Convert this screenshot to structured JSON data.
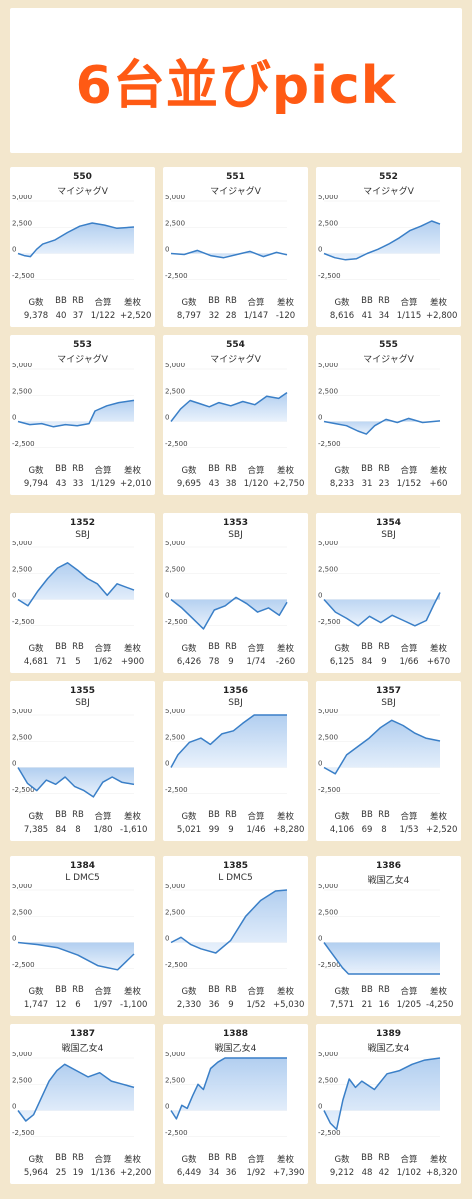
{
  "title": "6台並びpick",
  "stat_headers": [
    "G数",
    "BB",
    "RB",
    "合算",
    "差枚"
  ],
  "axis": {
    "ymin": -3000,
    "ymax": 5000,
    "ticks": [
      "5,000",
      "2,500",
      "0",
      "-2,500"
    ]
  },
  "colors": {
    "line": "#3a7fc7",
    "fill_top": "#a9c9ee",
    "fill_bottom": "#e8f1fc",
    "accent": "#ff5a14"
  },
  "chart_data": [
    {
      "type": "area",
      "machine": "550",
      "model": "マイジャグV",
      "games": "9,378",
      "bb": "40",
      "rb": "37",
      "combined": "1/122",
      "diff": "+2,520",
      "x": [
        0,
        500,
        1000,
        1500,
        2000,
        3000,
        4000,
        5000,
        6000,
        7000,
        8000,
        9378
      ],
      "y": [
        0,
        -200,
        -300,
        400,
        900,
        1300,
        2000,
        2600,
        2900,
        2700,
        2400,
        2520
      ]
    },
    {
      "type": "area",
      "machine": "551",
      "model": "マイジャグV",
      "games": "8,797",
      "bb": "32",
      "rb": "28",
      "combined": "1/147",
      "diff": "-120",
      "x": [
        0,
        1000,
        2000,
        3000,
        4000,
        5000,
        6000,
        7000,
        8000,
        8797
      ],
      "y": [
        0,
        -100,
        300,
        -200,
        -400,
        -100,
        200,
        -300,
        100,
        -120
      ]
    },
    {
      "type": "area",
      "machine": "552",
      "model": "マイジャグV",
      "games": "8,616",
      "bb": "41",
      "rb": "34",
      "combined": "1/115",
      "diff": "+2,800",
      "x": [
        0,
        800,
        1600,
        2400,
        3200,
        4000,
        4800,
        5600,
        6400,
        7200,
        8000,
        8616
      ],
      "y": [
        0,
        -400,
        -600,
        -500,
        0,
        400,
        900,
        1500,
        2200,
        2600,
        3100,
        2800
      ]
    },
    {
      "type": "area",
      "machine": "553",
      "model": "マイジャグV",
      "games": "9,794",
      "bb": "43",
      "rb": "33",
      "combined": "1/129",
      "diff": "+2,010",
      "x": [
        0,
        1000,
        2000,
        3000,
        4000,
        5000,
        6000,
        6500,
        7500,
        8500,
        9794
      ],
      "y": [
        0,
        -300,
        -200,
        -500,
        -300,
        -400,
        -200,
        1000,
        1500,
        1800,
        2010
      ]
    },
    {
      "type": "area",
      "machine": "554",
      "model": "マイジャグV",
      "games": "9,695",
      "bb": "43",
      "rb": "38",
      "combined": "1/120",
      "diff": "+2,750",
      "x": [
        0,
        800,
        1600,
        2400,
        3200,
        4000,
        5000,
        6000,
        7000,
        8000,
        9000,
        9695
      ],
      "y": [
        0,
        1200,
        2000,
        1700,
        1400,
        1800,
        1500,
        1900,
        1600,
        2400,
        2200,
        2750
      ]
    },
    {
      "type": "area",
      "machine": "555",
      "model": "マイジャグV",
      "games": "8,233",
      "bb": "31",
      "rb": "23",
      "combined": "1/152",
      "diff": "+60",
      "x": [
        0,
        800,
        1600,
        2400,
        3000,
        3600,
        4400,
        5200,
        6000,
        7000,
        8233
      ],
      "y": [
        0,
        -200,
        -400,
        -900,
        -1200,
        -400,
        200,
        -100,
        300,
        -100,
        60
      ]
    },
    {
      "type": "area",
      "machine": "1352",
      "model": "SBJ",
      "games": "4,681",
      "bb": "71",
      "rb": "5",
      "combined": "1/62",
      "diff": "+900",
      "x": [
        0,
        400,
        800,
        1200,
        1600,
        2000,
        2400,
        2800,
        3200,
        3600,
        4000,
        4681
      ],
      "y": [
        0,
        -600,
        800,
        2000,
        3000,
        3500,
        2800,
        2000,
        1500,
        400,
        1500,
        900
      ]
    },
    {
      "type": "area",
      "machine": "1353",
      "model": "SBJ",
      "games": "6,426",
      "bb": "78",
      "rb": "9",
      "combined": "1/74",
      "diff": "-260",
      "x": [
        0,
        600,
        1200,
        1800,
        2400,
        3000,
        3600,
        4200,
        4800,
        5400,
        6000,
        6426
      ],
      "y": [
        0,
        -800,
        -1800,
        -2800,
        -1000,
        -600,
        200,
        -400,
        -1200,
        -800,
        -1500,
        -260
      ]
    },
    {
      "type": "area",
      "machine": "1354",
      "model": "SBJ",
      "games": "6,125",
      "bb": "84",
      "rb": "9",
      "combined": "1/66",
      "diff": "+670",
      "x": [
        0,
        600,
        1200,
        1800,
        2400,
        3000,
        3600,
        4200,
        4800,
        5400,
        5800,
        6125
      ],
      "y": [
        0,
        -1200,
        -1800,
        -2500,
        -1600,
        -2200,
        -1500,
        -2000,
        -2500,
        -2000,
        -500,
        670
      ]
    },
    {
      "type": "area",
      "machine": "1355",
      "model": "SBJ",
      "games": "7,385",
      "bb": "84",
      "rb": "8",
      "combined": "1/80",
      "diff": "-1,610",
      "x": [
        0,
        600,
        1200,
        1800,
        2400,
        3000,
        3600,
        4200,
        4800,
        5400,
        6000,
        6600,
        7385
      ],
      "y": [
        0,
        -1500,
        -2200,
        -1200,
        -1600,
        -900,
        -1800,
        -2200,
        -2800,
        -1400,
        -900,
        -1400,
        -1610
      ]
    },
    {
      "type": "area",
      "machine": "1356",
      "model": "SBJ",
      "games": "5,021",
      "bb": "99",
      "rb": "9",
      "combined": "1/46",
      "diff": "+8,280",
      "x": [
        0,
        300,
        800,
        1300,
        1700,
        2200,
        2700,
        3100,
        3600,
        4200,
        5021
      ],
      "y": [
        0,
        1200,
        2400,
        2800,
        2200,
        3200,
        3500,
        4200,
        5000,
        5000,
        5000
      ]
    },
    {
      "type": "area",
      "machine": "1357",
      "model": "SBJ",
      "games": "4,106",
      "bb": "69",
      "rb": "8",
      "combined": "1/53",
      "diff": "+2,520",
      "x": [
        0,
        400,
        800,
        1200,
        1600,
        2000,
        2400,
        2800,
        3200,
        3600,
        4106
      ],
      "y": [
        0,
        -600,
        1200,
        2000,
        2800,
        3800,
        4500,
        4000,
        3300,
        2800,
        2520
      ]
    },
    {
      "type": "area",
      "machine": "1384",
      "model": "L DMC5",
      "games": "1,747",
      "bb": "12",
      "rb": "6",
      "combined": "1/97",
      "diff": "-1,100",
      "x": [
        0,
        300,
        600,
        900,
        1200,
        1500,
        1747
      ],
      "y": [
        0,
        -200,
        -500,
        -1200,
        -2200,
        -2600,
        -1100
      ]
    },
    {
      "type": "area",
      "machine": "1385",
      "model": "L DMC5",
      "games": "2,330",
      "bb": "36",
      "rb": "9",
      "combined": "1/52",
      "diff": "+5,030",
      "x": [
        0,
        200,
        400,
        600,
        900,
        1200,
        1500,
        1800,
        2100,
        2330
      ],
      "y": [
        0,
        500,
        -200,
        -600,
        -1000,
        200,
        2500,
        4000,
        4900,
        5030
      ]
    },
    {
      "type": "area",
      "machine": "1386",
      "model": "戦国乙女4",
      "games": "7,571",
      "bb": "21",
      "rb": "16",
      "combined": "1/205",
      "diff": "-4,250",
      "x": [
        0,
        400,
        800,
        1200,
        1600,
        2000,
        7571
      ],
      "y": [
        0,
        -800,
        -1600,
        -2400,
        -3000,
        -3000,
        -3000
      ]
    },
    {
      "type": "area",
      "machine": "1387",
      "model": "戦国乙女4",
      "games": "5,964",
      "bb": "25",
      "rb": "19",
      "combined": "1/136",
      "diff": "+2,200",
      "x": [
        0,
        400,
        800,
        1200,
        1600,
        2000,
        2400,
        3000,
        3600,
        4200,
        4800,
        5400,
        5964
      ],
      "y": [
        0,
        -1000,
        -400,
        1200,
        2800,
        3800,
        4400,
        3800,
        3200,
        3600,
        2800,
        2500,
        2200
      ]
    },
    {
      "type": "area",
      "machine": "1388",
      "model": "戦国乙女4",
      "games": "6,449",
      "bb": "34",
      "rb": "36",
      "combined": "1/92",
      "diff": "+7,390",
      "x": [
        0,
        300,
        600,
        900,
        1200,
        1500,
        1800,
        2200,
        2600,
        3000,
        6449
      ],
      "y": [
        0,
        -800,
        500,
        200,
        1400,
        2500,
        2000,
        4000,
        4600,
        5000,
        5000
      ]
    },
    {
      "type": "area",
      "machine": "1389",
      "model": "戦国乙女4",
      "games": "9,212",
      "bb": "48",
      "rb": "42",
      "combined": "1/102",
      "diff": "+8,320",
      "x": [
        0,
        500,
        1000,
        1500,
        2000,
        2500,
        3000,
        4000,
        5000,
        6000,
        7000,
        8000,
        9212
      ],
      "y": [
        0,
        -1200,
        -1800,
        1000,
        3000,
        2200,
        2800,
        2000,
        3500,
        3800,
        4400,
        4800,
        5000
      ]
    }
  ]
}
